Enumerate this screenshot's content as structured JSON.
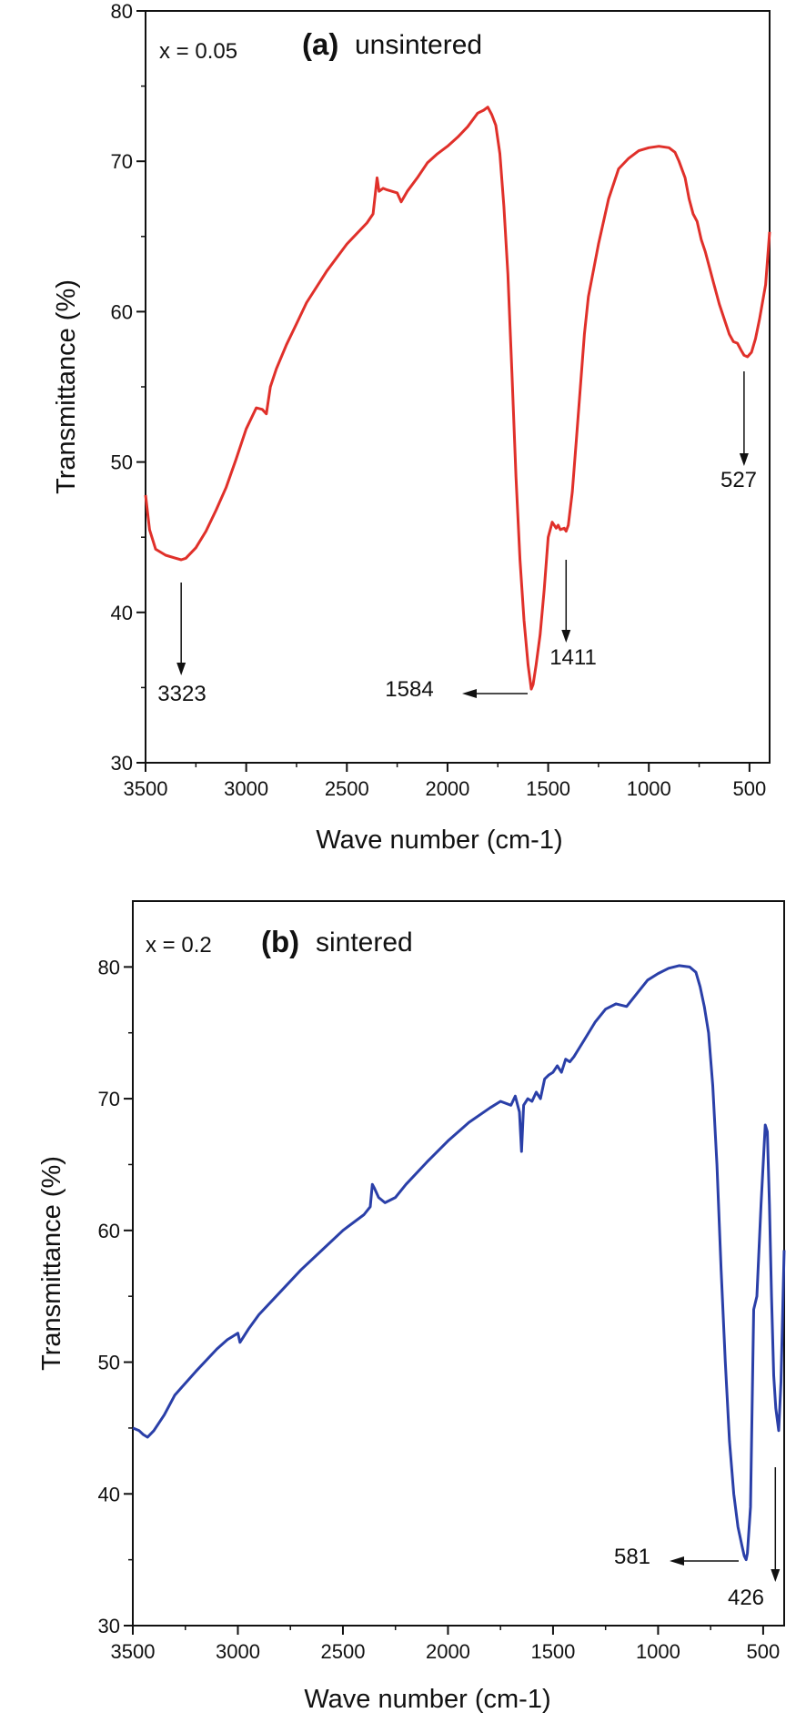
{
  "colors": {
    "panel_a_line": "#e0302a",
    "panel_b_line": "#2a3fa8",
    "axes": "#111111"
  },
  "chart_data": [
    {
      "type": "line",
      "panel_label": "(a)",
      "condition": "unsintered",
      "parameter": "x = 0.05",
      "xlabel": "Wave number (cm-1)",
      "ylabel": "Transmittance (%)",
      "xlim": [
        3500,
        400
      ],
      "ylim": [
        30,
        80
      ],
      "x_ticks": [
        3500,
        3000,
        2500,
        2000,
        1500,
        1000,
        500
      ],
      "y_ticks": [
        30,
        40,
        50,
        60,
        70,
        80
      ],
      "series": [
        {
          "x": [
            3500,
            3480,
            3450,
            3400,
            3350,
            3323,
            3300,
            3250,
            3200,
            3150,
            3100,
            3050,
            3000,
            2950,
            2920,
            2900,
            2880,
            2850,
            2800,
            2750,
            2700,
            2600,
            2500,
            2400,
            2370,
            2350,
            2340,
            2320,
            2300,
            2250,
            2230,
            2200,
            2150,
            2100,
            2050,
            2000,
            1950,
            1900,
            1850,
            1820,
            1800,
            1780,
            1760,
            1740,
            1720,
            1700,
            1680,
            1660,
            1640,
            1620,
            1600,
            1590,
            1584,
            1575,
            1560,
            1540,
            1520,
            1500,
            1480,
            1460,
            1450,
            1440,
            1420,
            1411,
            1400,
            1380,
            1360,
            1340,
            1320,
            1300,
            1250,
            1200,
            1150,
            1100,
            1050,
            1000,
            950,
            900,
            870,
            850,
            820,
            800,
            780,
            760,
            740,
            720,
            700,
            680,
            650,
            620,
            600,
            580,
            560,
            540,
            527,
            510,
            490,
            470,
            450,
            420,
            400
          ],
          "y": [
            47.8,
            45.5,
            44.2,
            43.8,
            43.6,
            43.5,
            43.6,
            44.3,
            45.4,
            46.8,
            48.3,
            50.2,
            52.2,
            53.6,
            53.5,
            53.2,
            55.0,
            56.2,
            57.8,
            59.2,
            60.6,
            62.7,
            64.5,
            65.9,
            66.5,
            68.9,
            68.0,
            68.2,
            68.1,
            67.9,
            67.3,
            68.0,
            68.9,
            69.9,
            70.5,
            71.0,
            71.6,
            72.3,
            73.2,
            73.4,
            73.6,
            73.1,
            72.4,
            70.5,
            67.0,
            62.5,
            56.0,
            49.0,
            43.5,
            39.5,
            36.5,
            35.5,
            34.9,
            35.2,
            36.5,
            38.5,
            41.5,
            45.0,
            46.0,
            45.6,
            45.8,
            45.5,
            45.6,
            45.4,
            45.8,
            48.0,
            51.5,
            55.0,
            58.5,
            61.0,
            64.5,
            67.5,
            69.5,
            70.2,
            70.7,
            70.9,
            71.0,
            70.9,
            70.6,
            70.0,
            68.9,
            67.5,
            66.5,
            66.0,
            64.8,
            64.0,
            63.0,
            62.0,
            60.5,
            59.3,
            58.5,
            58.0,
            57.9,
            57.4,
            57.1,
            57.0,
            57.3,
            58.2,
            59.5,
            61.8,
            65.3
          ]
        }
      ],
      "annotations": [
        {
          "label": "3323",
          "x": 3323,
          "arrow": "down"
        },
        {
          "label": "1584",
          "x": 1584,
          "arrow": "left"
        },
        {
          "label": "1411",
          "x": 1411,
          "arrow": "down"
        },
        {
          "label": "527",
          "x": 527,
          "arrow": "down"
        }
      ]
    },
    {
      "type": "line",
      "panel_label": "(b)",
      "condition": "sintered",
      "parameter": "x = 0.2",
      "xlabel": "Wave number (cm-1)",
      "ylabel": "Transmittance (%)",
      "xlim": [
        3500,
        400
      ],
      "ylim": [
        30,
        85
      ],
      "x_ticks": [
        3500,
        3000,
        2500,
        2000,
        1500,
        1000,
        500
      ],
      "y_ticks": [
        30,
        40,
        50,
        60,
        70,
        80
      ],
      "series": [
        {
          "x": [
            3500,
            3470,
            3450,
            3430,
            3400,
            3350,
            3300,
            3200,
            3100,
            3050,
            3000,
            2990,
            2950,
            2900,
            2800,
            2700,
            2600,
            2500,
            2400,
            2370,
            2360,
            2350,
            2330,
            2300,
            2250,
            2200,
            2100,
            2000,
            1900,
            1800,
            1750,
            1700,
            1680,
            1660,
            1650,
            1640,
            1620,
            1600,
            1580,
            1560,
            1540,
            1520,
            1500,
            1480,
            1460,
            1440,
            1420,
            1400,
            1350,
            1300,
            1250,
            1200,
            1150,
            1100,
            1050,
            1000,
            950,
            900,
            850,
            820,
            800,
            780,
            760,
            740,
            720,
            700,
            680,
            660,
            640,
            620,
            600,
            590,
            581,
            575,
            560,
            545,
            530,
            510,
            490,
            480,
            470,
            460,
            450,
            440,
            426,
            415,
            400
          ],
          "y": [
            45.0,
            44.8,
            44.5,
            44.3,
            44.8,
            46.0,
            47.5,
            49.3,
            51.0,
            51.7,
            52.2,
            51.5,
            52.5,
            53.6,
            55.3,
            57.0,
            58.5,
            60.0,
            61.2,
            61.8,
            63.5,
            63.2,
            62.5,
            62.1,
            62.5,
            63.5,
            65.2,
            66.8,
            68.2,
            69.3,
            69.8,
            69.5,
            70.2,
            69.0,
            66.0,
            69.5,
            70.0,
            69.8,
            70.5,
            70.0,
            71.5,
            71.8,
            72.0,
            72.5,
            72.0,
            73.0,
            72.8,
            73.2,
            74.5,
            75.8,
            76.8,
            77.2,
            77.0,
            78.0,
            79.0,
            79.5,
            79.9,
            80.1,
            80.0,
            79.6,
            78.5,
            77.0,
            75.0,
            71.0,
            65.0,
            57.0,
            50.0,
            44.0,
            40.0,
            37.5,
            36.0,
            35.3,
            35.0,
            35.5,
            39.0,
            54.0,
            55.0,
            62.0,
            68.0,
            67.5,
            62.0,
            55.0,
            49.0,
            46.5,
            44.8,
            48.5,
            58.5
          ]
        }
      ],
      "annotations": [
        {
          "label": "581",
          "x": 581,
          "arrow": "left"
        },
        {
          "label": "426",
          "x": 426,
          "arrow": "down"
        }
      ]
    }
  ]
}
